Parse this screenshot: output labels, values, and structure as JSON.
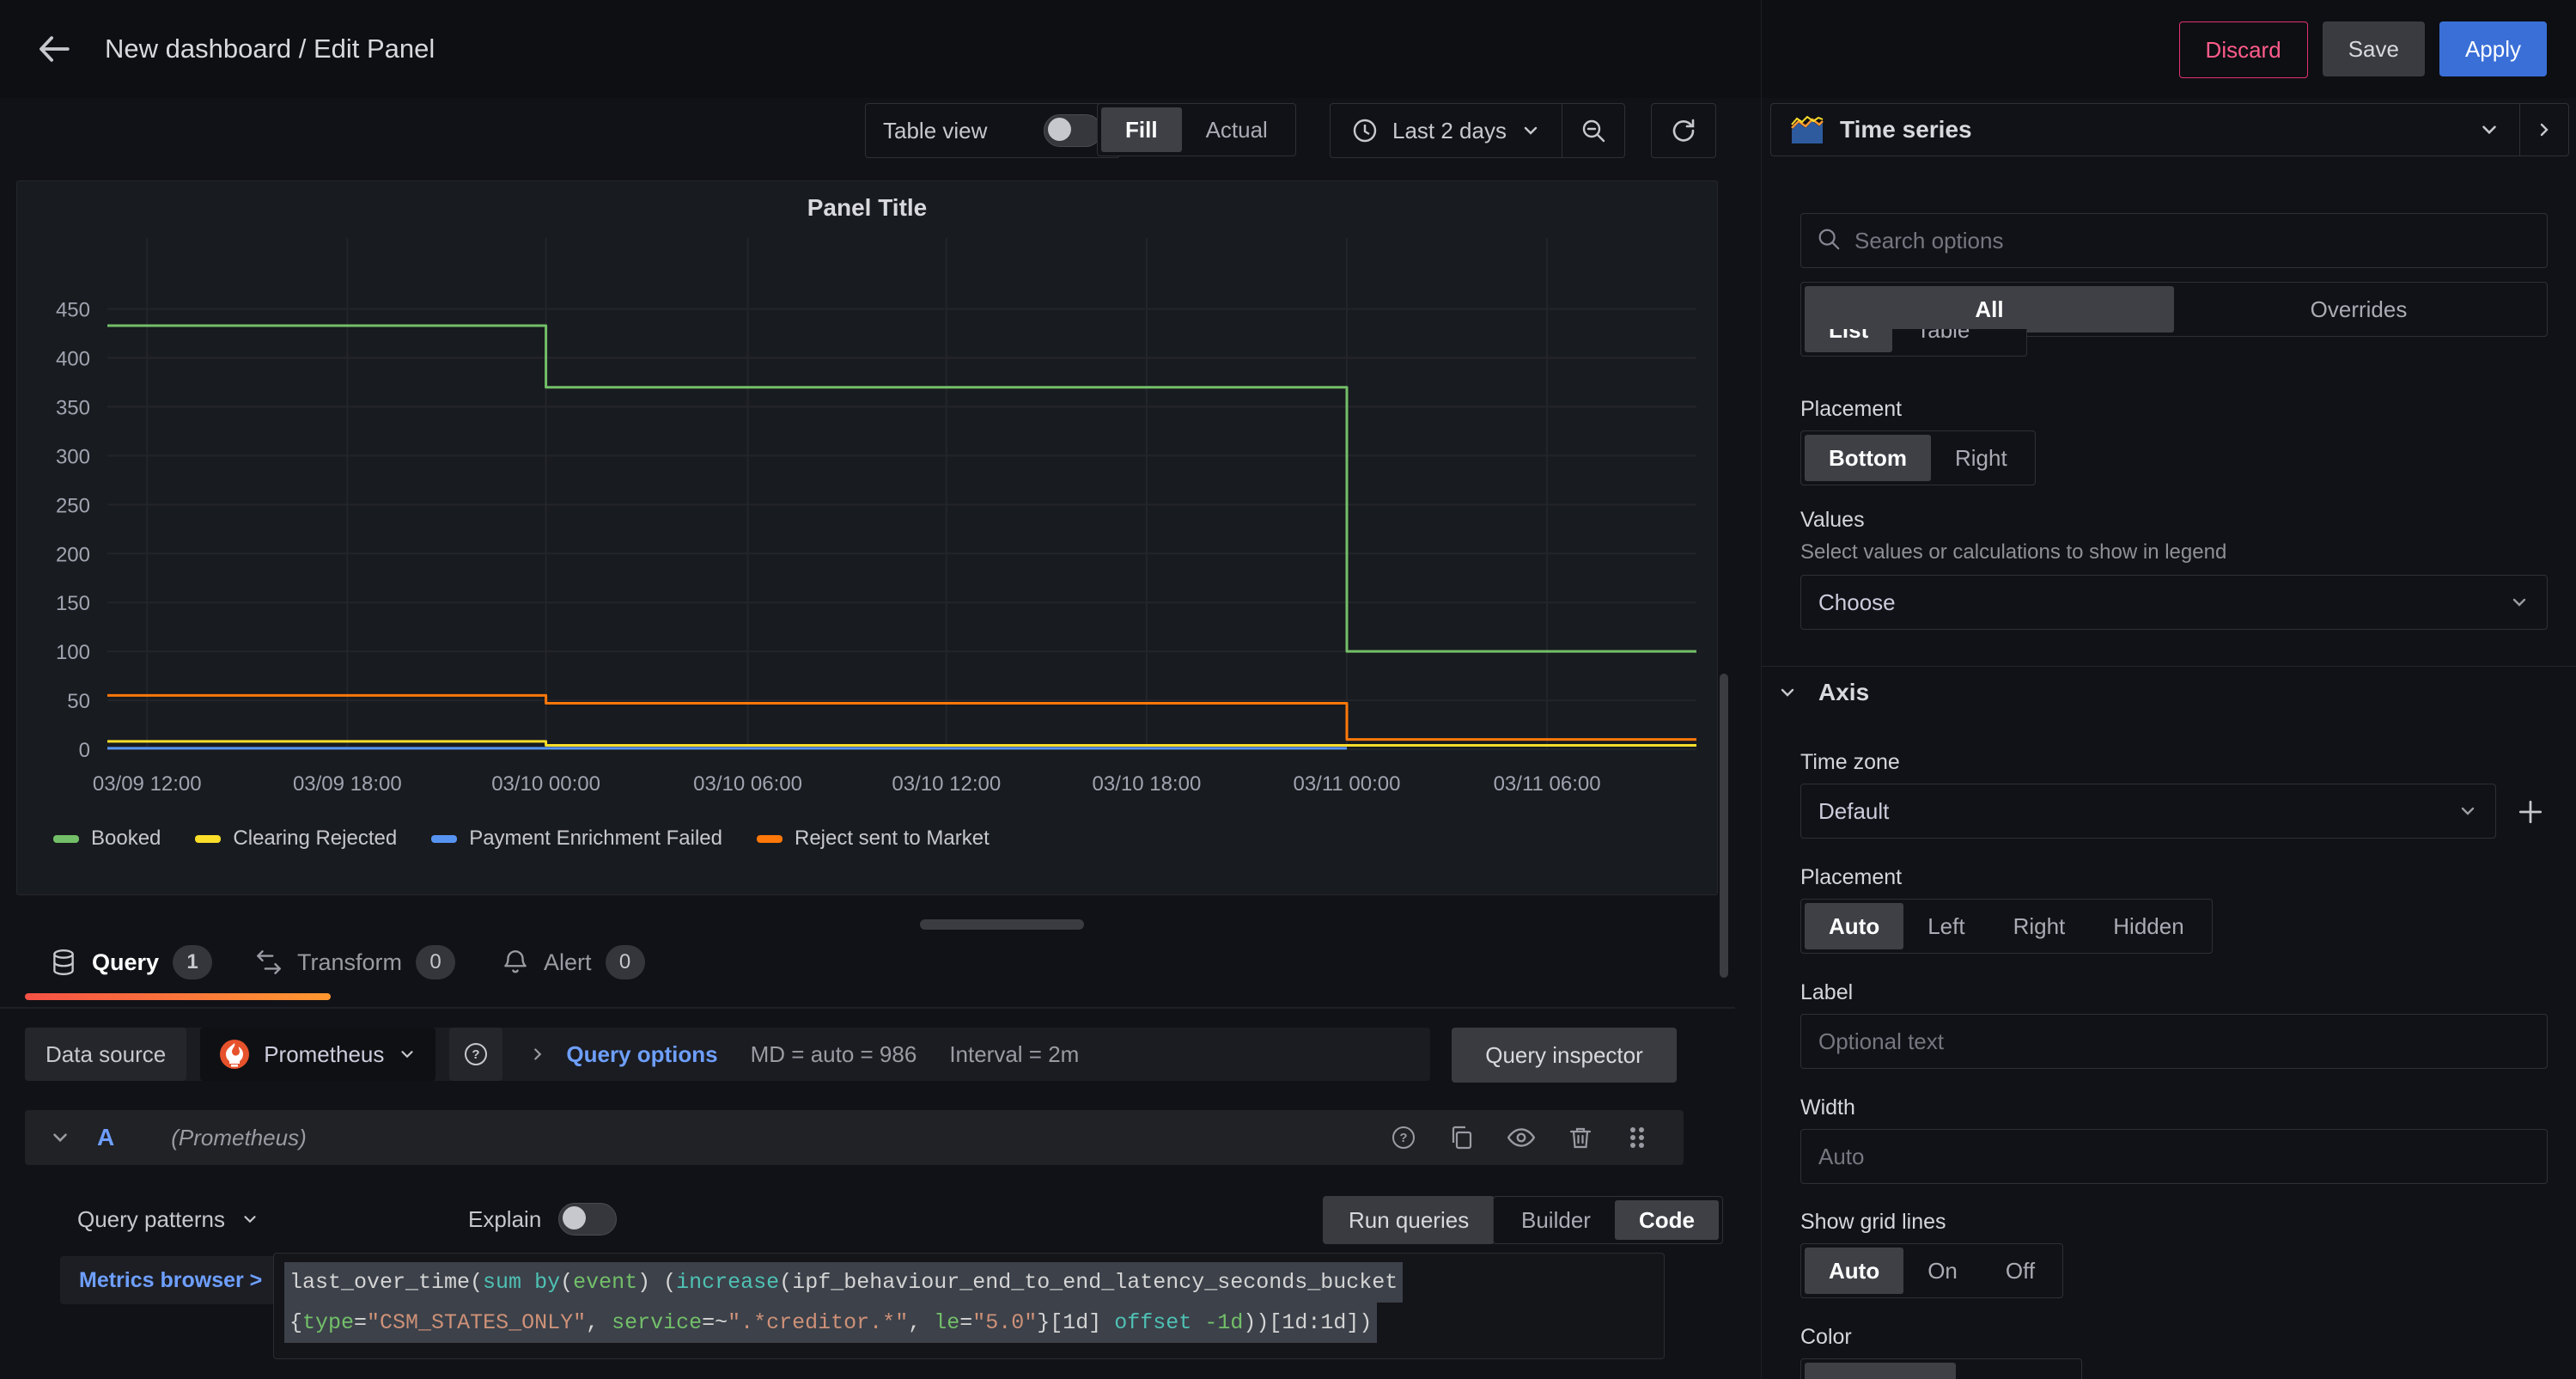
{
  "header": {
    "title": "New dashboard / Edit Panel",
    "discard": "Discard",
    "save": "Save",
    "apply": "Apply"
  },
  "toolbar": {
    "table_view": "Table view",
    "display_mode": {
      "options": [
        "Fill",
        "Actual"
      ],
      "active": "Fill"
    },
    "time_range": "Last 2 days"
  },
  "panel": {
    "title": "Panel Title"
  },
  "chart_data": {
    "type": "line",
    "title": "Panel Title",
    "ylim": [
      0,
      505
    ],
    "y_ticks": [
      0,
      50,
      100,
      150,
      200,
      250,
      300,
      350,
      400,
      450
    ],
    "x_ticks": [
      {
        "label": "03/09 12:00",
        "f": 0.025
      },
      {
        "label": "03/09 18:00",
        "f": 0.151
      },
      {
        "label": "03/10 00:00",
        "f": 0.276
      },
      {
        "label": "03/10 06:00",
        "f": 0.403
      },
      {
        "label": "03/10 12:00",
        "f": 0.528
      },
      {
        "label": "03/10 18:00",
        "f": 0.654
      },
      {
        "label": "03/11 00:00",
        "f": 0.78
      },
      {
        "label": "03/11 06:00",
        "f": 0.906
      }
    ],
    "legend_position": "bottom",
    "grid": true,
    "series": [
      {
        "name": "Booked",
        "color": "#73bf69",
        "steps": [
          {
            "from": 0,
            "to": 0.276,
            "v": 433
          },
          {
            "from": 0.276,
            "to": 0.78,
            "v": 370
          },
          {
            "from": 0.78,
            "to": 1,
            "v": 100
          }
        ]
      },
      {
        "name": "Clearing Rejected",
        "color": "#fade2a",
        "steps": [
          {
            "from": 0,
            "to": 0.276,
            "v": 8
          },
          {
            "from": 0.276,
            "to": 1,
            "v": 4
          }
        ]
      },
      {
        "name": "Payment Enrichment Failed",
        "color": "#5794f2",
        "steps": [
          {
            "from": 0,
            "to": 0.78,
            "v": 1
          }
        ]
      },
      {
        "name": "Reject sent to Market",
        "color": "#ff780a",
        "steps": [
          {
            "from": 0,
            "to": 0.276,
            "v": 55
          },
          {
            "from": 0.276,
            "to": 0.78,
            "v": 47
          },
          {
            "from": 0.78,
            "to": 1,
            "v": 10
          }
        ]
      }
    ]
  },
  "query_tabs": [
    {
      "label": "Query",
      "count": "1"
    },
    {
      "label": "Transform",
      "count": "0"
    },
    {
      "label": "Alert",
      "count": "0"
    }
  ],
  "ds_row": {
    "label": "Data source",
    "name": "Prometheus",
    "options_link": "Query options",
    "md": "MD = auto = 986",
    "interval": "Interval = 2m",
    "inspector": "Query inspector"
  },
  "query_a": {
    "ref": "A",
    "hint": "(Prometheus)"
  },
  "patterns_row": {
    "query_patterns": "Query patterns",
    "explain": "Explain",
    "run_queries": "Run queries",
    "editor_mode": {
      "options": [
        "Builder",
        "Code"
      ],
      "active": "Code"
    }
  },
  "editor": {
    "metrics_browser": "Metrics browser >",
    "line1": [
      [
        "last_over_time(",
        "p"
      ],
      [
        "sum",
        "f"
      ],
      [
        " ",
        "p"
      ],
      [
        "by",
        "f"
      ],
      [
        "(",
        "p"
      ],
      [
        "event",
        "l"
      ],
      [
        ") (",
        "p"
      ],
      [
        "increase",
        "f"
      ],
      [
        "(",
        "p"
      ],
      [
        "ipf_behaviour_end_to_end_latency_seconds_bucket",
        "p"
      ]
    ],
    "line2": [
      [
        "{",
        "p"
      ],
      [
        "type",
        "l"
      ],
      [
        "=",
        "p"
      ],
      [
        "\"CSM_STATES_ONLY\"",
        "s"
      ],
      [
        ", ",
        "p"
      ],
      [
        "service",
        "l"
      ],
      [
        "=~",
        "p"
      ],
      [
        "\".*creditor.*\"",
        "s"
      ],
      [
        ", ",
        "p"
      ],
      [
        "le",
        "l"
      ],
      [
        "=",
        "p"
      ],
      [
        "\"5.0\"",
        "s"
      ],
      [
        "}[1d] ",
        "p"
      ],
      [
        "offset",
        "f"
      ],
      [
        " ",
        "p"
      ],
      [
        "-1d",
        "l"
      ],
      [
        "))[1d:1d])",
        "p"
      ]
    ]
  },
  "sidebar": {
    "viz_name": "Time series",
    "search_placeholder": "Search options",
    "tab_mode": {
      "options": [
        "All",
        "Overrides"
      ],
      "active": "All"
    },
    "cutoff_mode": {
      "options": [
        "List",
        "Table"
      ],
      "active": "List"
    },
    "legend_placement": {
      "label": "Placement",
      "group": {
        "options": [
          "Bottom",
          "Right"
        ],
        "active": "Bottom"
      }
    },
    "values": {
      "label": "Values",
      "desc": "Select values or calculations to show in legend",
      "select": "Choose"
    },
    "axis": {
      "title": "Axis",
      "timezone_label": "Time zone",
      "timezone_value": "Default",
      "placement": {
        "label": "Placement",
        "group": {
          "options": [
            "Auto",
            "Left",
            "Right",
            "Hidden"
          ],
          "active": "Auto"
        }
      },
      "label_label": "Label",
      "label_placeholder": "Optional text",
      "width_label": "Width",
      "width_placeholder": "Auto",
      "grid": {
        "label": "Show grid lines",
        "group": {
          "options": [
            "Auto",
            "On",
            "Off"
          ],
          "active": "Auto"
        }
      },
      "color_label": "Color"
    }
  }
}
